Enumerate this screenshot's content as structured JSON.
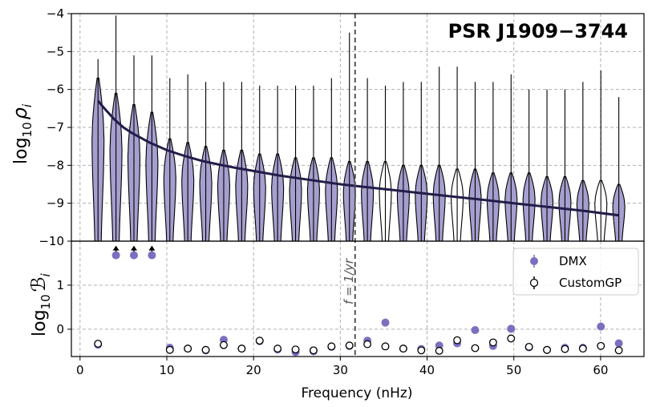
{
  "colors": {
    "dmx": "#7b6fc0",
    "violin_fill": "#a59fcf",
    "fit_line": "#231d4a",
    "customgp": "#000000",
    "vline": "#555555"
  },
  "chart_data": [
    {
      "type": "violin",
      "title": "PSR J1909−3744",
      "ylabel_base": "log",
      "ylabel_sub": "10",
      "ylabel_sym": "ρ",
      "ylabel_symsub": "i",
      "ylim": [
        -10,
        -4
      ],
      "yticks": [
        "−10",
        "−9",
        "−8",
        "−7",
        "−6",
        "−5",
        "−4"
      ],
      "ytick_values": [
        -10,
        -9,
        -8,
        -7,
        -6,
        -5,
        -4
      ],
      "vline_label": "f = 1/yr",
      "vline_x": 31.7,
      "violins": [
        {
          "f": 2.07,
          "top": -5.2,
          "peak": -6.3,
          "style": "filled"
        },
        {
          "f": 4.14,
          "top": -4.05,
          "peak": -6.7,
          "style": "filled"
        },
        {
          "f": 6.21,
          "top": -5.1,
          "peak": -7.0,
          "style": "filled"
        },
        {
          "f": 8.28,
          "top": -5.1,
          "peak": -7.2,
          "style": "filled"
        },
        {
          "f": 10.35,
          "top": -5.7,
          "peak": -7.9,
          "style": "filled"
        },
        {
          "f": 12.42,
          "top": -5.6,
          "peak": -8.0,
          "style": "filled"
        },
        {
          "f": 14.49,
          "top": -5.8,
          "peak": -8.1,
          "style": "filled"
        },
        {
          "f": 16.56,
          "top": -5.8,
          "peak": -8.2,
          "style": "filled"
        },
        {
          "f": 18.63,
          "top": -5.8,
          "peak": -8.2,
          "style": "filled"
        },
        {
          "f": 20.7,
          "top": -5.9,
          "peak": -8.3,
          "style": "filled"
        },
        {
          "f": 22.77,
          "top": -5.9,
          "peak": -8.3,
          "style": "filled"
        },
        {
          "f": 24.84,
          "top": -5.9,
          "peak": -8.4,
          "style": "filled"
        },
        {
          "f": 26.91,
          "top": -5.9,
          "peak": -8.4,
          "style": "filled"
        },
        {
          "f": 28.98,
          "top": -5.7,
          "peak": -8.4,
          "style": "filled"
        },
        {
          "f": 31.05,
          "top": -4.5,
          "peak": -8.5,
          "style": "filled"
        },
        {
          "f": 33.12,
          "top": -5.7,
          "peak": -8.5,
          "style": "filled"
        },
        {
          "f": 35.19,
          "top": -5.9,
          "peak": -8.5,
          "style": "open"
        },
        {
          "f": 37.26,
          "top": -5.8,
          "peak": -8.6,
          "style": "filled"
        },
        {
          "f": 39.33,
          "top": -5.8,
          "peak": -8.6,
          "style": "filled"
        },
        {
          "f": 41.4,
          "top": -5.4,
          "peak": -8.6,
          "style": "filled"
        },
        {
          "f": 43.47,
          "top": -5.4,
          "peak": -8.7,
          "style": "open"
        },
        {
          "f": 45.54,
          "top": -5.8,
          "peak": -8.7,
          "style": "filled"
        },
        {
          "f": 47.61,
          "top": -5.8,
          "peak": -8.8,
          "style": "filled"
        },
        {
          "f": 49.68,
          "top": -5.6,
          "peak": -8.8,
          "style": "filled"
        },
        {
          "f": 51.75,
          "top": -6.0,
          "peak": -8.8,
          "style": "filled"
        },
        {
          "f": 53.82,
          "top": -6.0,
          "peak": -8.9,
          "style": "filled"
        },
        {
          "f": 55.89,
          "top": -6.0,
          "peak": -8.9,
          "style": "filled"
        },
        {
          "f": 57.96,
          "top": -5.8,
          "peak": -9.0,
          "style": "filled"
        },
        {
          "f": 60.03,
          "top": -5.5,
          "peak": -9.0,
          "style": "open"
        },
        {
          "f": 62.1,
          "top": -6.2,
          "peak": -9.1,
          "style": "filled"
        }
      ],
      "fit_curve": {
        "f": [
          2.07,
          3,
          4,
          5,
          6,
          8,
          10,
          12,
          14,
          16,
          18,
          20,
          23,
          26,
          30,
          34,
          38,
          42,
          46,
          50,
          54,
          58,
          62.1
        ],
        "log_rho": [
          -6.3,
          -6.55,
          -6.8,
          -7.0,
          -7.15,
          -7.4,
          -7.6,
          -7.75,
          -7.88,
          -7.98,
          -8.07,
          -8.15,
          -8.27,
          -8.37,
          -8.5,
          -8.6,
          -8.7,
          -8.8,
          -8.9,
          -9.0,
          -9.1,
          -9.2,
          -9.32
        ]
      },
      "upper_limit_arrows_f": [
        4.14,
        6.21,
        8.28
      ]
    },
    {
      "type": "scatter",
      "xlabel": "Frequency (nHz)",
      "ylabel_base": "log",
      "ylabel_sub": "10",
      "ylabel_sym": "ℬ",
      "ylabel_symsub": "i",
      "xlim": [
        -1,
        65
      ],
      "xticks": [
        "0",
        "10",
        "20",
        "30",
        "40",
        "50",
        "60"
      ],
      "xtick_values": [
        0,
        10,
        20,
        30,
        40,
        50,
        60
      ],
      "ylim": [
        -0.62,
        2.0
      ],
      "yticks": [
        "0",
        "1"
      ],
      "ytick_values": [
        0,
        1
      ],
      "legend": [
        {
          "label": "DMX",
          "marker": "filled"
        },
        {
          "label": "CustomGP",
          "marker": "open"
        }
      ],
      "series": [
        {
          "name": "DMX",
          "f": [
            2.07,
            4.14,
            6.21,
            8.28,
            10.35,
            12.42,
            14.49,
            16.56,
            18.63,
            20.7,
            22.77,
            24.84,
            26.91,
            28.98,
            31.05,
            33.12,
            35.19,
            37.26,
            39.33,
            41.4,
            43.47,
            45.54,
            47.61,
            49.68,
            51.75,
            53.82,
            55.89,
            57.96,
            60.03,
            62.1
          ],
          "values": [
            -0.35,
            1.68,
            1.68,
            1.68,
            -0.42,
            -0.44,
            -0.48,
            -0.24,
            -0.44,
            -0.27,
            -0.46,
            -0.52,
            -0.5,
            -0.4,
            -0.38,
            -0.26,
            0.15,
            -0.44,
            -0.45,
            -0.37,
            -0.32,
            -0.02,
            -0.38,
            0.01,
            -0.41,
            -0.47,
            -0.42,
            -0.42,
            0.06,
            -0.32
          ]
        },
        {
          "name": "CustomGP",
          "f": [
            2.07,
            10.35,
            12.42,
            14.49,
            16.56,
            18.63,
            20.7,
            22.77,
            24.84,
            26.91,
            28.98,
            31.05,
            33.12,
            35.19,
            37.26,
            39.33,
            41.4,
            43.47,
            45.54,
            47.61,
            49.68,
            51.75,
            53.82,
            55.89,
            57.96,
            60.03,
            62.1
          ],
          "values": [
            -0.33,
            -0.47,
            -0.44,
            -0.47,
            -0.36,
            -0.44,
            -0.26,
            -0.44,
            -0.46,
            -0.48,
            -0.39,
            -0.37,
            -0.34,
            -0.39,
            -0.44,
            -0.48,
            -0.49,
            -0.25,
            -0.43,
            -0.3,
            -0.21,
            -0.4,
            -0.47,
            -0.45,
            -0.44,
            -0.38,
            -0.48
          ]
        }
      ]
    }
  ]
}
